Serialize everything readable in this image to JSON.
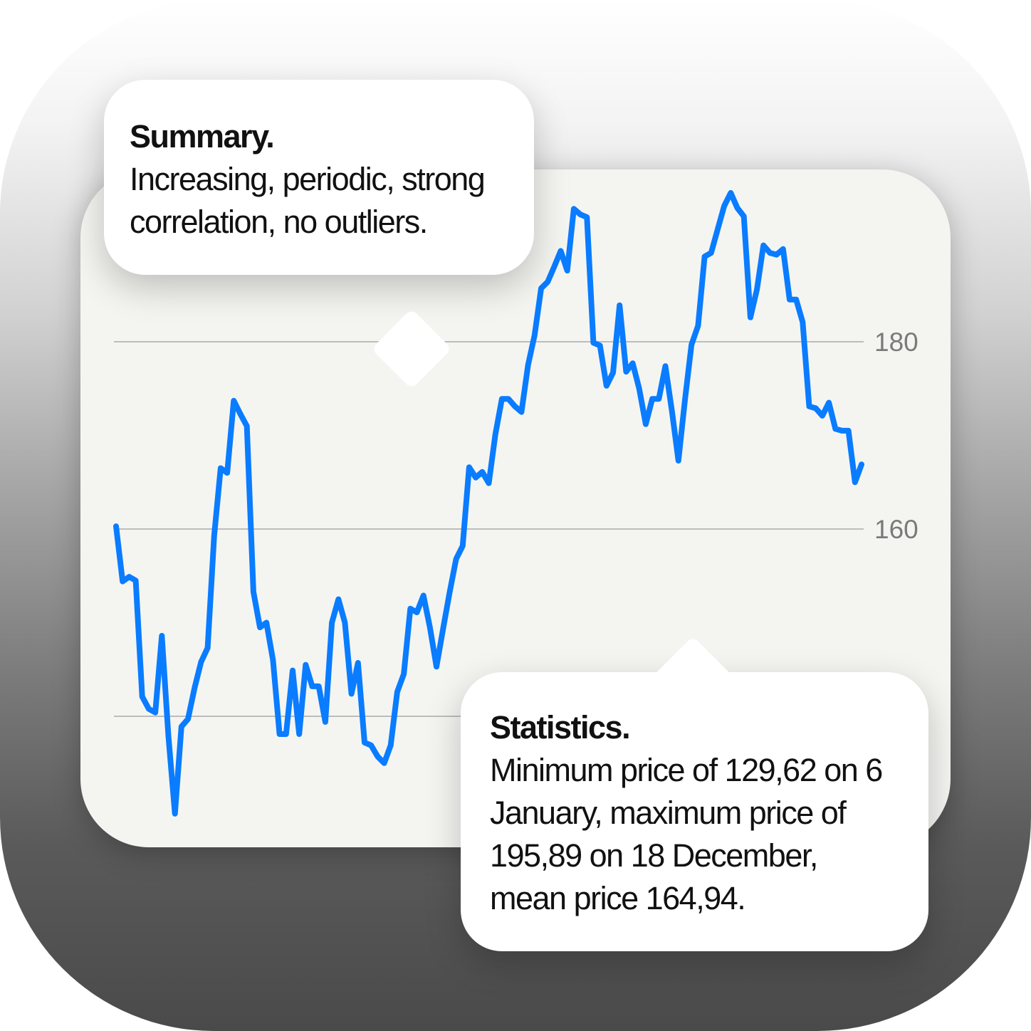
{
  "colors": {
    "line": "#0a7cff",
    "grid": "#bdbdbd",
    "tick": "#7a7a7a",
    "card": "#f4f5f1"
  },
  "summary": {
    "title": "Summary.",
    "body": "Increasing, periodic, strong correlation, no outliers."
  },
  "statistics": {
    "title": "Statistics.",
    "body": "Minimum price of 129,62 on 6 January, maximum price of 195,89 on 18 December, mean price 164,94."
  },
  "chart_data": {
    "type": "line",
    "y_ticks": [
      140,
      160,
      180
    ],
    "y_tick_labels": [
      "",
      "160",
      "180"
    ],
    "ylim": [
      129,
      196
    ],
    "grid": true,
    "series": [
      {
        "values": [
          160.3,
          154.4,
          154.9,
          154.5,
          142.1,
          140.8,
          140.4,
          148.6,
          137.9,
          129.6,
          138.9,
          139.7,
          143.0,
          145.8,
          147.3,
          159.3,
          166.5,
          166.0,
          173.7,
          172.3,
          171.0,
          153.3,
          149.5,
          150.0,
          146.0,
          138.1,
          138.1,
          144.9,
          138.1,
          145.5,
          143.2,
          143.2,
          139.4,
          150.0,
          152.5,
          150.0,
          142.4,
          145.7,
          137.2,
          136.9,
          135.7,
          135.0,
          136.9,
          142.6,
          144.5,
          151.5,
          151.1,
          152.9,
          149.5,
          145.3,
          149.3,
          153.2,
          156.8,
          158.2,
          166.6,
          165.5,
          166.1,
          164.9,
          170.1,
          173.9,
          173.9,
          173.1,
          172.5,
          177.5,
          180.7,
          185.7,
          186.4,
          188.0,
          189.7,
          187.6,
          194.2,
          193.6,
          193.3,
          179.9,
          179.6,
          175.3,
          176.7,
          183.9,
          176.8,
          177.7,
          175.0,
          171.2,
          173.9,
          173.9,
          177.4,
          172.6,
          167.3,
          173.8,
          179.7,
          181.7,
          189.1,
          189.5,
          192.0,
          194.5,
          195.9,
          194.3,
          193.4,
          182.6,
          185.6,
          190.3,
          189.5,
          189.3,
          189.9,
          184.5,
          184.5,
          182.1,
          173.1,
          172.9,
          172.1,
          173.5,
          170.7,
          170.5,
          170.5,
          165.0,
          166.9
        ]
      }
    ]
  }
}
